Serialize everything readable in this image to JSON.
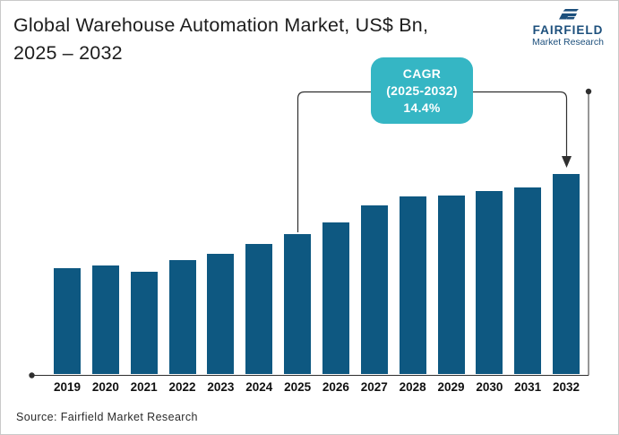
{
  "header": {
    "title_line1": "Global Warehouse Automation Market, US$ Bn,",
    "title_line2": "2025 – 2032"
  },
  "logo": {
    "brand": "FAIRFIELD",
    "subtitle": "Market Research",
    "icon": "fairfield-flag-icon"
  },
  "callout": {
    "line1": "CAGR",
    "line2": "(2025-2032)",
    "line3": "14.4%"
  },
  "footer": {
    "source": "Source: Fairfield Market Research"
  },
  "colors": {
    "bar": "#0e5881",
    "callout": "#35b6c4",
    "logo": "#1c4f7c",
    "axis": "#2f2f2f",
    "text": "#1d1d1d"
  },
  "chart_data": {
    "type": "bar",
    "title": "Global Warehouse Automation Market, US$ Bn, 2025 – 2032",
    "unit": "US$ Bn",
    "categories": [
      "2019",
      "2020",
      "2021",
      "2022",
      "2023",
      "2024",
      "2025",
      "2026",
      "2027",
      "2028",
      "2029",
      "2030",
      "2031",
      "2032"
    ],
    "values": [
      118,
      121,
      114,
      127,
      134,
      145,
      156,
      169,
      188,
      198,
      199,
      204,
      208,
      223
    ],
    "values_note": "No numeric y-axis shown in the figure; values are relative bar heights (pixels, baseline 0).",
    "xlabel": "",
    "ylabel": "",
    "grid": false,
    "legend": "none",
    "annotation": "CAGR (2025-2032) 14.4%",
    "annotation_span": [
      "2025",
      "2032"
    ]
  }
}
